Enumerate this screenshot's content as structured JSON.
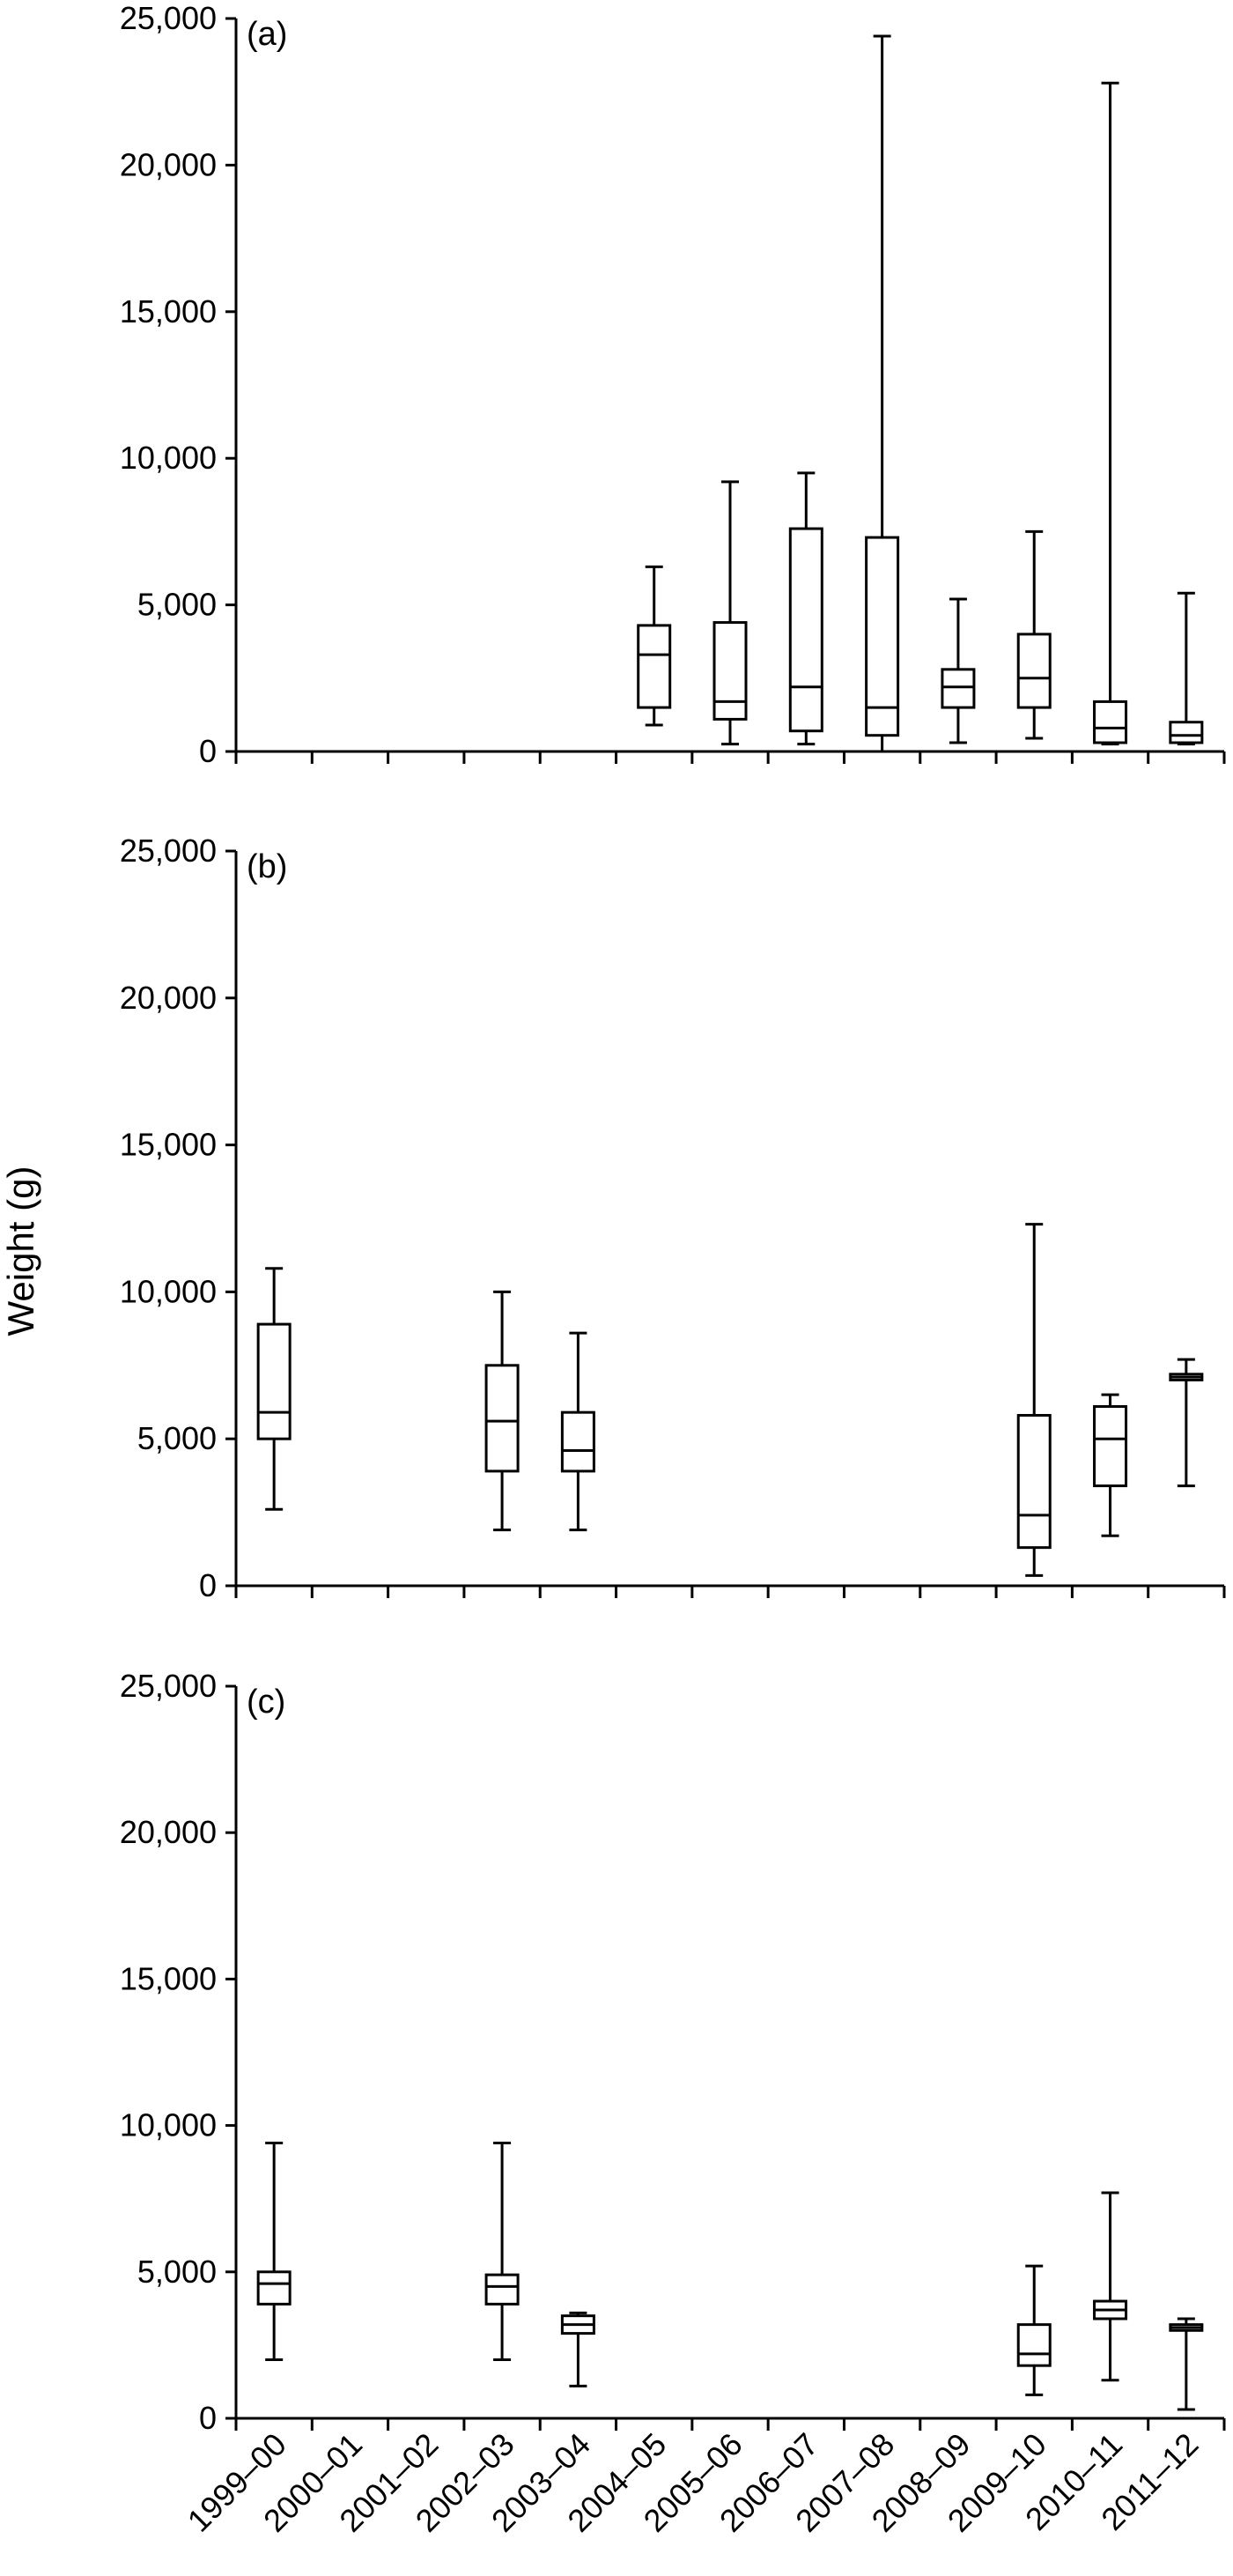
{
  "chart_data": {
    "type": "boxplot",
    "ylabel": "Weight (g)",
    "categories": [
      "1999–00",
      "2000–01",
      "2001–02",
      "2002–03",
      "2003–04",
      "2004–05",
      "2005–06",
      "2006–07",
      "2007–08",
      "2008–09",
      "2009–10",
      "2010–11",
      "2011–12"
    ],
    "ylim": [
      0,
      25000
    ],
    "yticks": [
      0,
      5000,
      10000,
      15000,
      20000,
      25000
    ],
    "ytick_labels": [
      "0",
      "5,000",
      "10,000",
      "15,000",
      "20,000",
      "25,000"
    ],
    "grid": false,
    "panels": [
      {
        "label": "(a)",
        "boxes": [
          {
            "category": "2004–05",
            "min": 900,
            "q1": 1500,
            "median": 3300,
            "q3": 4300,
            "max": 6300
          },
          {
            "category": "2005–06",
            "min": 250,
            "q1": 1100,
            "median": 1700,
            "q3": 4400,
            "max": 9200
          },
          {
            "category": "2006–07",
            "min": 250,
            "q1": 700,
            "median": 2200,
            "q3": 7600,
            "max": 9500
          },
          {
            "category": "2007–08",
            "min": 0,
            "q1": 550,
            "median": 1500,
            "q3": 7300,
            "max": 24400
          },
          {
            "category": "2008–09",
            "min": 300,
            "q1": 1500,
            "median": 2200,
            "q3": 2800,
            "max": 5200
          },
          {
            "category": "2009–10",
            "min": 450,
            "q1": 1500,
            "median": 2500,
            "q3": 4000,
            "max": 7500
          },
          {
            "category": "2010–11",
            "min": 250,
            "q1": 300,
            "median": 800,
            "q3": 1700,
            "max": 22800
          },
          {
            "category": "2011–12",
            "min": 250,
            "q1": 300,
            "median": 550,
            "q3": 1000,
            "max": 5400
          }
        ]
      },
      {
        "label": "(b)",
        "boxes": [
          {
            "category": "1999–00",
            "min": 2600,
            "q1": 5000,
            "median": 5900,
            "q3": 8900,
            "max": 10800
          },
          {
            "category": "2002–03",
            "min": 1900,
            "q1": 3900,
            "median": 5600,
            "q3": 7500,
            "max": 10000
          },
          {
            "category": "2003–04",
            "min": 1900,
            "q1": 3900,
            "median": 4600,
            "q3": 5900,
            "max": 8600
          },
          {
            "category": "2009–10",
            "min": 350,
            "q1": 1300,
            "median": 2400,
            "q3": 5800,
            "max": 12300
          },
          {
            "category": "2010–11",
            "min": 1700,
            "q1": 3400,
            "median": 5000,
            "q3": 6100,
            "max": 6500
          },
          {
            "category": "2011–12",
            "min": 3400,
            "q1": 7000,
            "median": 7100,
            "q3": 7200,
            "max": 7700
          }
        ]
      },
      {
        "label": "(c)",
        "boxes": [
          {
            "category": "1999–00",
            "min": 2000,
            "q1": 3900,
            "median": 4600,
            "q3": 5000,
            "max": 9400
          },
          {
            "category": "2002–03",
            "min": 2000,
            "q1": 3900,
            "median": 4500,
            "q3": 4900,
            "max": 9400
          },
          {
            "category": "2003–04",
            "min": 1100,
            "q1": 2900,
            "median": 3200,
            "q3": 3500,
            "max": 3600
          },
          {
            "category": "2009–10",
            "min": 800,
            "q1": 1800,
            "median": 2200,
            "q3": 3200,
            "max": 5200
          },
          {
            "category": "2010–11",
            "min": 1300,
            "q1": 3400,
            "median": 3700,
            "q3": 4000,
            "max": 7700
          },
          {
            "category": "2011–12",
            "min": 300,
            "q1": 3000,
            "median": 3100,
            "q3": 3200,
            "max": 3400
          }
        ]
      }
    ]
  }
}
